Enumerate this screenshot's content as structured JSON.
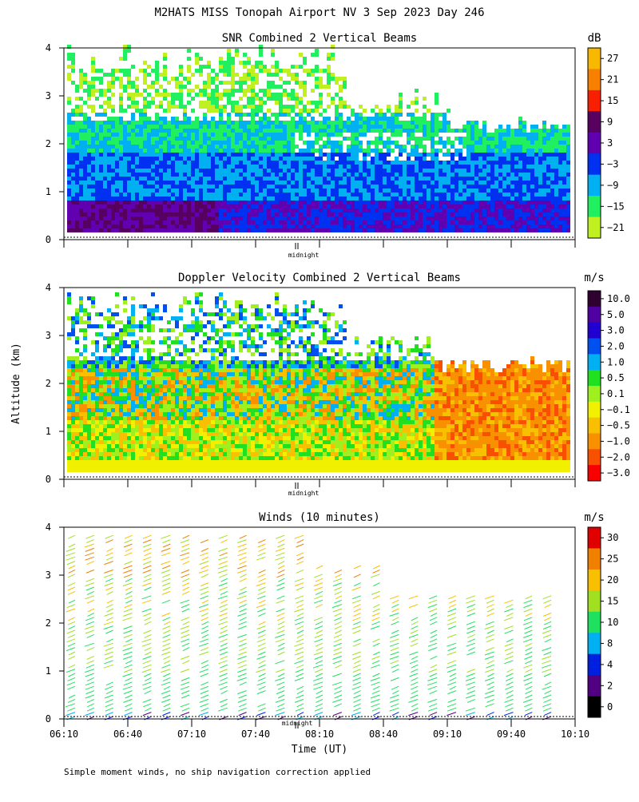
{
  "title": "M2HATS MISS Tonopah Airport NV   3 Sep 2023 Day 246",
  "ylabel": "Altitude (km)",
  "xlabel": "Time (UT)",
  "footnote": "Simple moment winds, no ship navigation correction applied",
  "midnight_label": "midnight",
  "x_ticks": [
    "06:10",
    "06:40",
    "07:10",
    "07:40",
    "08:10",
    "08:40",
    "09:10",
    "09:40",
    "10:10"
  ],
  "y_ticks": [
    "0",
    "1",
    "2",
    "3",
    "4"
  ],
  "chart_data": [
    {
      "type": "heatmap",
      "title": "SNR Combined 2 Vertical Beams",
      "unit": "dB",
      "ylim": [
        0,
        4
      ],
      "colorbar_labels": [
        "27",
        "21",
        "15",
        "9",
        "3",
        "−3",
        "−9",
        "−15",
        "−21"
      ],
      "colorbar_colors": [
        "#f8b800",
        "#f88000",
        "#f82000",
        "#580060",
        "#6000b0",
        "#0030f0",
        "#00b0f0",
        "#20f060",
        "#c0f020"
      ]
    },
    {
      "type": "heatmap",
      "title": "Doppler Velocity Combined 2 Vertical Beams",
      "unit": "m/s",
      "ylim": [
        0,
        4
      ],
      "colorbar_labels": [
        "10.0",
        "5.0",
        "3.0",
        "2.0",
        "1.0",
        "0.5",
        "0.1",
        "−0.1",
        "−0.5",
        "−1.0",
        "−2.0",
        "−3.0"
      ],
      "colorbar_colors": [
        "#300030",
        "#5000a0",
        "#2000d0",
        "#0050f0",
        "#00b0f0",
        "#20e020",
        "#a0f020",
        "#f0f000",
        "#f8c000",
        "#f89000",
        "#f85000",
        "#f80000"
      ]
    },
    {
      "type": "wind_barbs",
      "title": "Winds (10 minutes)",
      "unit": "m/s",
      "ylim": [
        0,
        4
      ],
      "colorbar_labels": [
        "30",
        "25",
        "20",
        "15",
        "10",
        "8",
        "4",
        "2",
        "0"
      ],
      "colorbar_colors": [
        "#e00000",
        "#f08000",
        "#f8c000",
        "#a0e020",
        "#20e060",
        "#00b0f0",
        "#0020e0",
        "#500080",
        "#000000"
      ]
    }
  ]
}
